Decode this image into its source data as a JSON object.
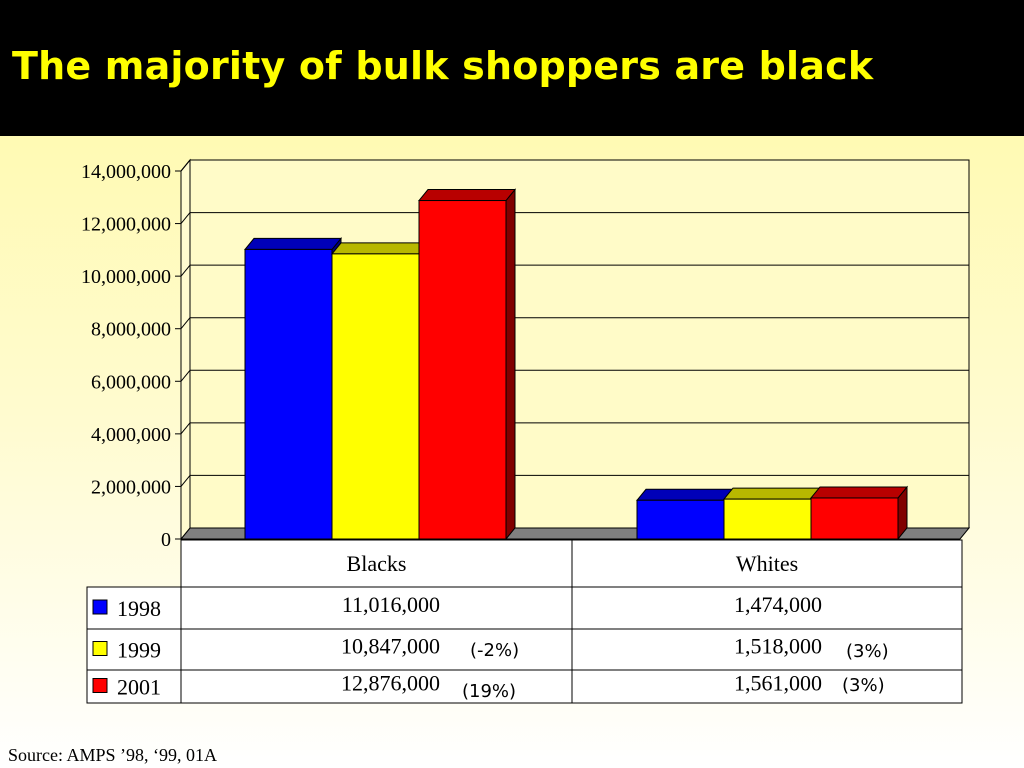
{
  "title": "The majority of bulk shoppers are black",
  "source": "Source: AMPS ’98, ‘99, 01A",
  "chart_data": {
    "type": "bar",
    "title": "",
    "xlabel": "",
    "ylabel": "",
    "ylim": [
      0,
      14000000
    ],
    "yticks": [
      0,
      2000000,
      4000000,
      6000000,
      8000000,
      10000000,
      12000000,
      14000000
    ],
    "ytick_labels": [
      "0",
      "2,000,000",
      "4,000,000",
      "6,000,000",
      "8,000,000",
      "10,000,000",
      "12,000,000",
      "14,000,000"
    ],
    "grid": true,
    "legend": "data-table",
    "categories": [
      "Blacks",
      "Whites"
    ],
    "series": [
      {
        "name": "1998",
        "color": "#0000ff",
        "values": [
          11016000,
          1474000
        ],
        "labels": [
          "11,016,000",
          "1,474,000"
        ],
        "changes": [
          "",
          ""
        ]
      },
      {
        "name": "1999",
        "color": "#ffff00",
        "values": [
          10847000,
          1518000
        ],
        "labels": [
          "10,847,000",
          "1,518,000"
        ],
        "changes": [
          "(-2%)",
          "(3%)"
        ]
      },
      {
        "name": "2001",
        "color": "#ff0000",
        "values": [
          12876000,
          1561000
        ],
        "labels": [
          "12,876,000",
          "1,561,000"
        ],
        "changes": [
          "(19%)",
          "(3%)"
        ]
      }
    ]
  }
}
